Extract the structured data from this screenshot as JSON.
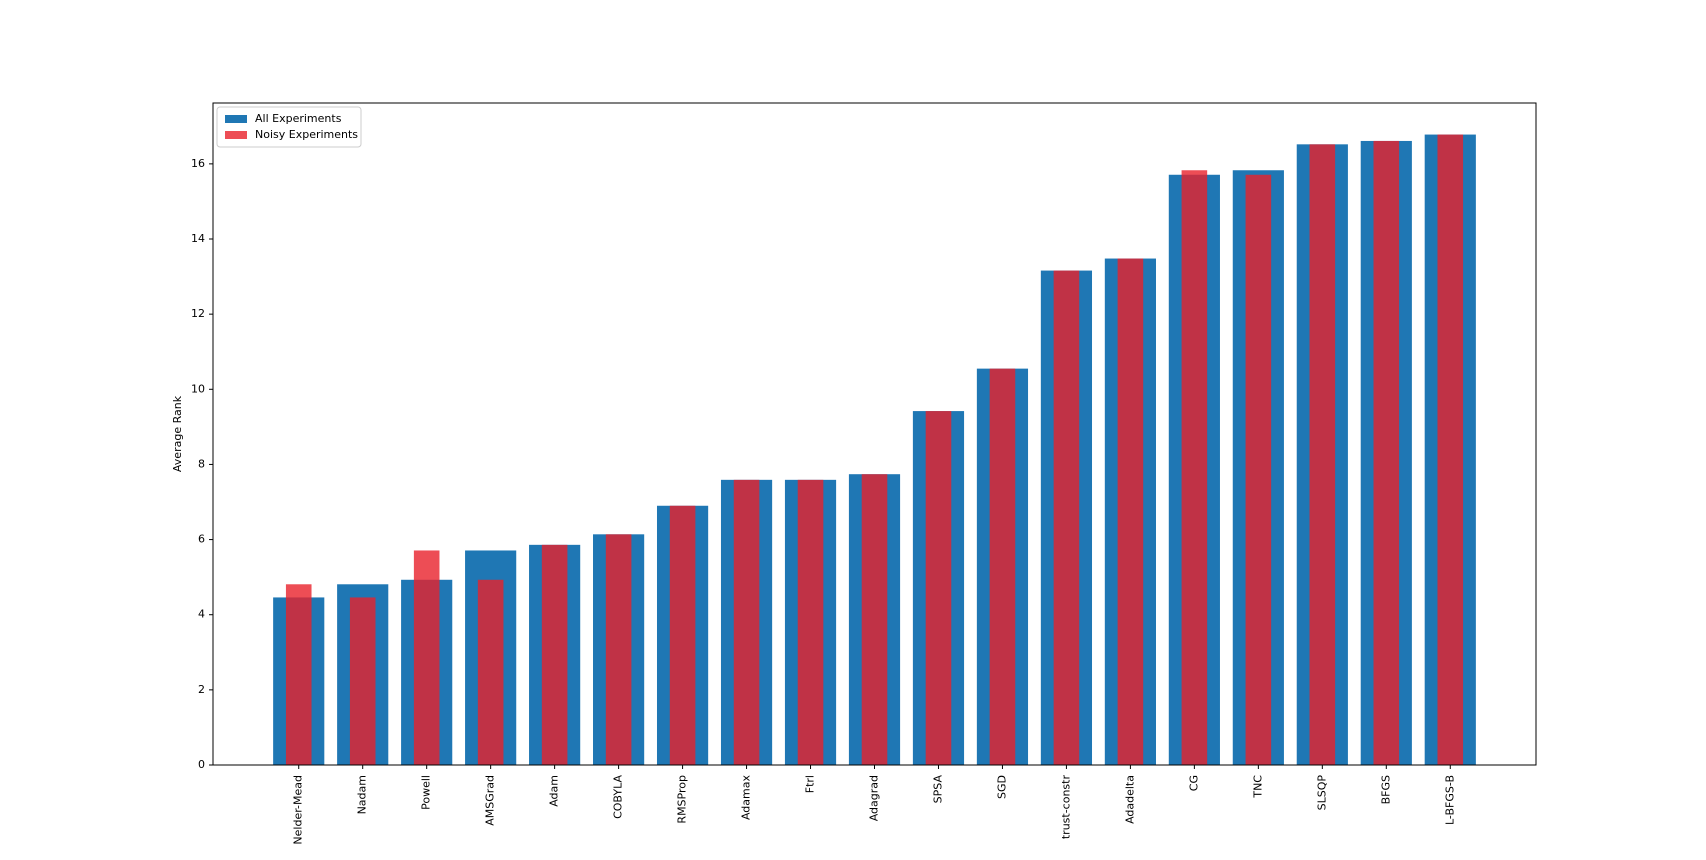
{
  "chart_data": {
    "type": "bar",
    "ylabel": "Average Rank",
    "categories": [
      "Nelder-Mead",
      "Nadam",
      "Powell",
      "AMSGrad",
      "Adam",
      "COBYLA",
      "RMSProp",
      "Adamax",
      "Ftrl",
      "Adagrad",
      "SPSA",
      "SGD",
      "trust-constr",
      "Adadelta",
      "CG",
      "TNC",
      "SLSQP",
      "BFGS",
      "L-BFGS-B"
    ],
    "series": [
      {
        "name": "All Experiments",
        "color": "#1f77b4",
        "values": [
          4.46,
          4.81,
          4.93,
          5.71,
          5.86,
          6.14,
          6.9,
          7.59,
          7.59,
          7.74,
          9.42,
          10.55,
          13.16,
          13.48,
          15.71,
          15.83,
          16.52,
          16.61,
          16.78
        ]
      },
      {
        "name": "Noisy Experiments",
        "color": "#e8202a",
        "values": [
          4.81,
          4.46,
          5.71,
          4.93,
          5.86,
          6.14,
          6.9,
          7.59,
          7.59,
          7.74,
          9.42,
          10.55,
          13.16,
          13.48,
          15.83,
          15.71,
          16.52,
          16.61,
          16.78
        ]
      }
    ],
    "ylim": [
      0,
      17.62
    ],
    "yticks": [
      0,
      2,
      4,
      6,
      8,
      10,
      12,
      14,
      16
    ],
    "legend": "upper left"
  }
}
